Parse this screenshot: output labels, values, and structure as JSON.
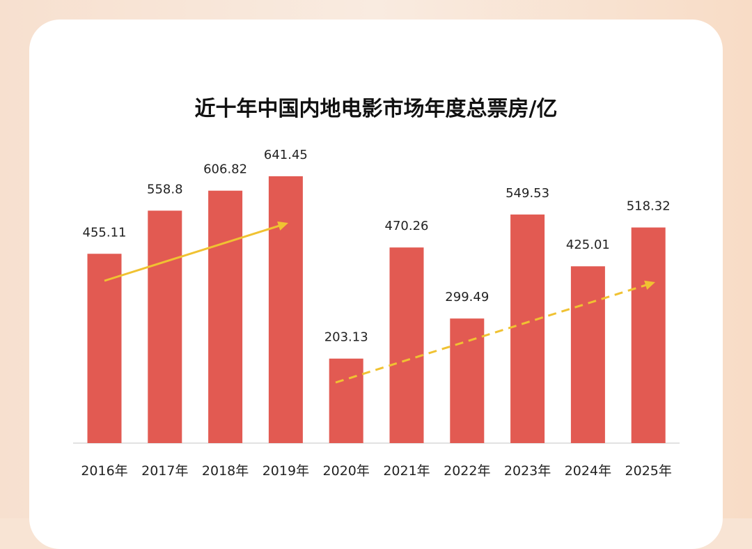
{
  "chart_data": {
    "type": "bar",
    "title": "近十年中国内地电影市场年度总票房/亿",
    "categories": [
      "2016年",
      "2017年",
      "2018年",
      "2019年",
      "2020年",
      "2021年",
      "2022年",
      "2023年",
      "2024年",
      "2025年"
    ],
    "values": [
      455.11,
      558.8,
      606.82,
      641.45,
      203.13,
      470.26,
      299.49,
      549.53,
      425.01,
      518.32
    ],
    "value_labels": [
      "455.11",
      "558.8",
      "606.82",
      "641.45",
      "203.13",
      "470.26",
      "299.49",
      "549.53",
      "425.01",
      "518.32"
    ],
    "xlabel": "",
    "ylabel": "",
    "ylim": [
      0,
      641.45
    ],
    "grid": false,
    "annotations": [
      {
        "type": "trend-arrow",
        "style": "solid",
        "from_category": "2016年",
        "to_category": "2019年"
      },
      {
        "type": "trend-arrow",
        "style": "dashed",
        "from_category": "2020年",
        "to_category": "2025年"
      }
    ],
    "colors": {
      "bar": "#e25a52",
      "arrow": "#f0c232",
      "axis": "#d8d8d8"
    }
  }
}
